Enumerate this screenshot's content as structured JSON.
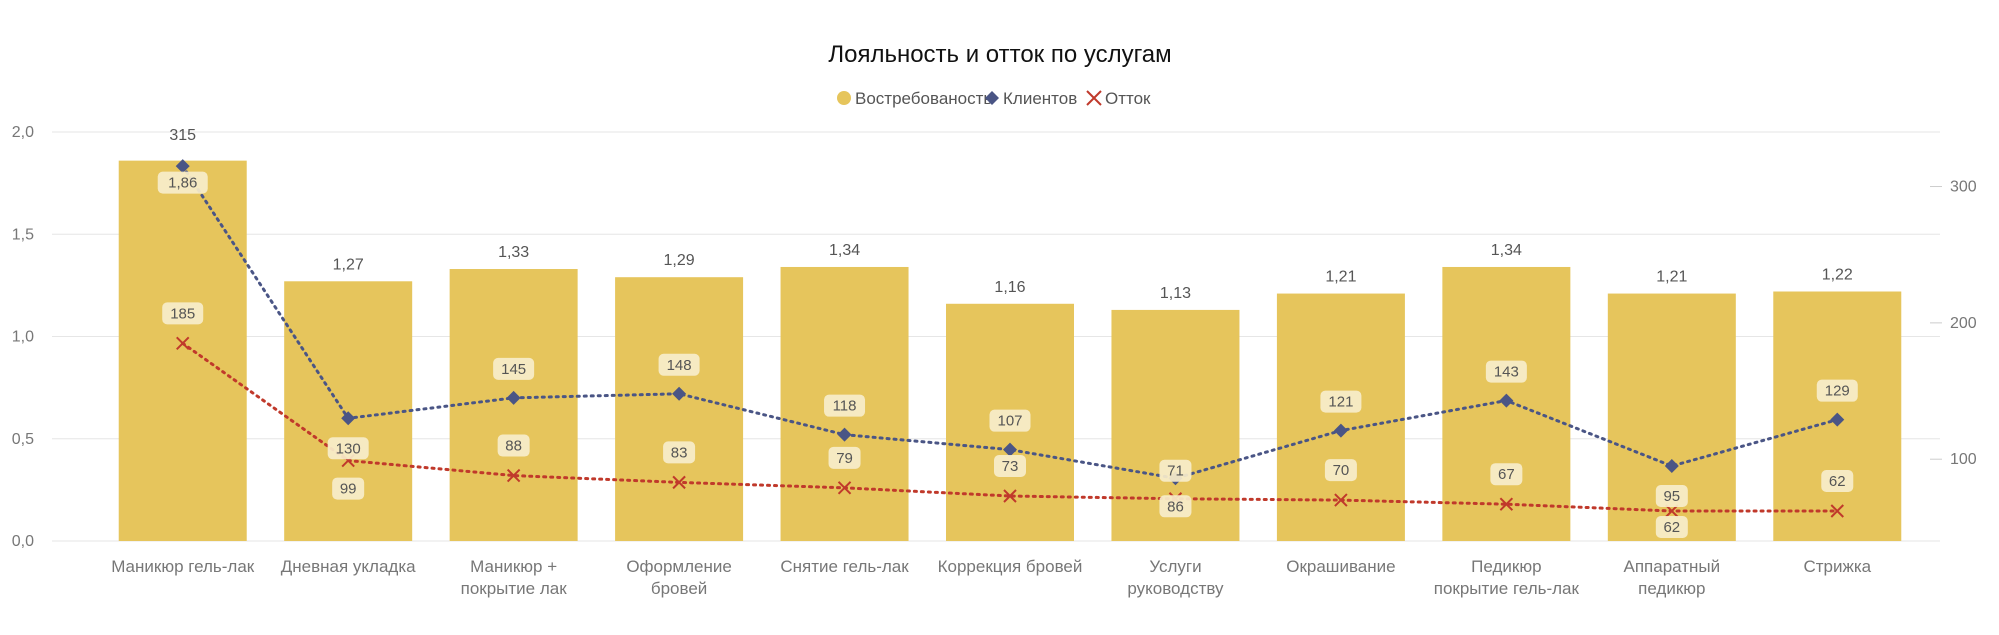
{
  "chart_data": {
    "type": "bar",
    "title": "Лояльность и отток по услугам",
    "categories": [
      "Маникюр гель-лак",
      "Дневная укладка",
      "Маникюр + покрытие лак",
      "Оформление бровей",
      "Снятие гель-лак",
      "Коррекция бровей",
      "Услуги руководству",
      "Окрашивание",
      "Педикюр покрытие гель-лак",
      "Аппаратный педикюр",
      "Стрижка"
    ],
    "category_lines": [
      [
        "Маникюр гель-лак"
      ],
      [
        "Дневная укладка"
      ],
      [
        "Маникюр +",
        "покрытие лак"
      ],
      [
        "Оформление",
        "бровей"
      ],
      [
        "Снятие гель-лак"
      ],
      [
        "Коррекция бровей"
      ],
      [
        "Услуги",
        "руководству"
      ],
      [
        "Окрашивание"
      ],
      [
        "Педикюр",
        "покрытие гель-лак"
      ],
      [
        "Аппаратный",
        "педикюр"
      ],
      [
        "Стрижка"
      ]
    ],
    "series": [
      {
        "name": "Востребованость",
        "type": "bar",
        "axis": "left",
        "color": "#E6C55C",
        "values": [
          1.86,
          1.27,
          1.33,
          1.29,
          1.34,
          1.16,
          1.13,
          1.21,
          1.34,
          1.21,
          1.22
        ],
        "labels": [
          "1,86",
          "1,27",
          "1,33",
          "1,29",
          "1,34",
          "1,16",
          "1,13",
          "1,21",
          "1,34",
          "1,21",
          "1,22"
        ]
      },
      {
        "name": "Клиентов",
        "type": "line",
        "axis": "right",
        "marker": "diamond",
        "color": "#4A5585",
        "values": [
          315,
          130,
          145,
          148,
          118,
          107,
          86,
          121,
          143,
          95,
          129
        ],
        "labels": [
          "315",
          "130",
          "145",
          "148",
          "118",
          "107",
          "86",
          "121",
          "143",
          "95",
          "129"
        ]
      },
      {
        "name": "Отток",
        "type": "line",
        "axis": "right",
        "marker": "x",
        "color": "#C0392B",
        "values": [
          185,
          99,
          88,
          83,
          79,
          73,
          71,
          70,
          67,
          62,
          62
        ],
        "labels": [
          "185",
          "99",
          "88",
          "83",
          "79",
          "73",
          "71",
          "70",
          "67",
          "62",
          "62"
        ]
      }
    ],
    "y_left": {
      "min": 0,
      "max": 2.0,
      "ticks": [
        "0,0",
        "0,5",
        "1,0",
        "1,5",
        "2,0"
      ]
    },
    "y_right": {
      "min": 40,
      "max": 340,
      "ticks": [
        "100",
        "200",
        "300"
      ]
    },
    "legend_position": "top",
    "grid": true
  }
}
